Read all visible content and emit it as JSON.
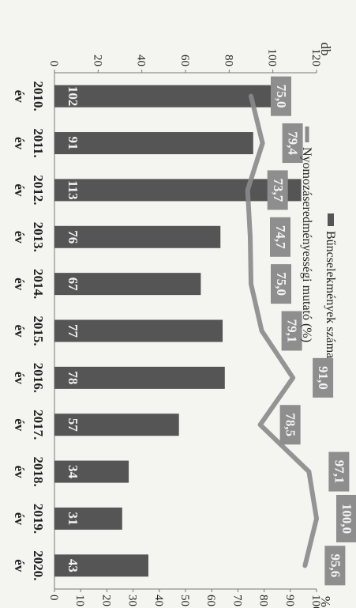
{
  "chart_data": {
    "type": "bar",
    "orientation": "rotated-90-clockwise",
    "categories": [
      "2010.",
      "2011.",
      "2012.",
      "2013.",
      "2014.",
      "2015.",
      "2016.",
      "2017.",
      "2018.",
      "2019.",
      "2020."
    ],
    "category_suffix": "év",
    "series": [
      {
        "name": "Bűncselekmények száma",
        "type": "bar",
        "axis": "left",
        "color": "#555555",
        "values": [
          102,
          91,
          113,
          76,
          67,
          77,
          78,
          57,
          34,
          31,
          43
        ],
        "labels": [
          "102",
          "91",
          "113",
          "76",
          "67",
          "77",
          "78",
          "57",
          "34",
          "31",
          "43"
        ]
      },
      {
        "name": "Nyomozáseredményességi mutató (%)",
        "type": "line",
        "axis": "right",
        "color": "#8a8a8a",
        "values": [
          75.0,
          79.4,
          73.7,
          74.7,
          75.0,
          79.1,
          91.0,
          78.5,
          97.1,
          100.0,
          95.6
        ],
        "labels": [
          "75,0",
          "79,4",
          "73,7",
          "74,7",
          "75,0",
          "79,1",
          "91,0",
          "78,5",
          "97,1",
          "100,0",
          "95,6"
        ]
      }
    ],
    "left_axis": {
      "unit": "db",
      "min": 0,
      "max": 120,
      "ticks": [
        "0",
        "20",
        "40",
        "60",
        "80",
        "100",
        "120"
      ]
    },
    "right_axis": {
      "unit": "%",
      "min": 0,
      "max": 100,
      "ticks": [
        "0",
        "10",
        "20",
        "30",
        "40",
        "50",
        "60",
        "70",
        "80",
        "90",
        "100"
      ]
    },
    "legend_position": "top",
    "grid": false
  }
}
